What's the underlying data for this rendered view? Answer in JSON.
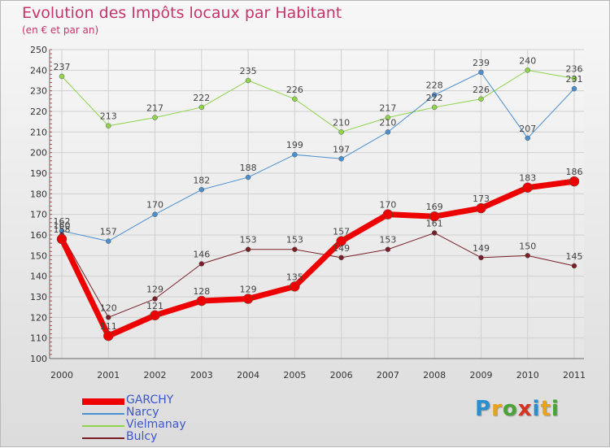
{
  "header": {
    "title": "Evolution des Impôts locaux par Habitant",
    "subtitle": "(en € et par an)"
  },
  "chart_data": {
    "type": "line",
    "title": "Evolution des Impôts locaux par Habitant",
    "subtitle": "(en € et par an)",
    "xlabel": "",
    "ylabel": "",
    "ylim": [
      100,
      250
    ],
    "y_ticks": [
      100,
      110,
      120,
      130,
      140,
      150,
      160,
      170,
      180,
      190,
      200,
      210,
      220,
      230,
      240,
      250
    ],
    "grid": true,
    "legend_position": "bottom-left",
    "categories": [
      "2000",
      "2001",
      "2002",
      "2003",
      "2004",
      "2005",
      "2006",
      "2007",
      "2008",
      "2009",
      "2010",
      "2011"
    ],
    "series": [
      {
        "name": "Vielmanay",
        "color": "#8fd44b",
        "values": [
          237,
          213,
          217,
          222,
          235,
          226,
          210,
          217,
          222,
          226,
          240,
          236
        ]
      },
      {
        "name": "Narcy",
        "color": "#4a8fcf",
        "values": [
          162,
          157,
          170,
          182,
          188,
          199,
          197,
          210,
          228,
          239,
          207,
          231
        ]
      },
      {
        "name": "Bulcy",
        "color": "#7a1f28",
        "values": [
          160,
          120,
          129,
          146,
          153,
          153,
          149,
          153,
          161,
          149,
          150,
          145
        ]
      },
      {
        "name": "GARCHY",
        "color": "#ee0000",
        "values": [
          158,
          111,
          121,
          128,
          129,
          135,
          157,
          170,
          169,
          173,
          183,
          186
        ]
      }
    ]
  },
  "legend": {
    "items": [
      {
        "label": "GARCHY",
        "color": "#ee0000"
      },
      {
        "label": "Narcy",
        "color": "#4a8fcf"
      },
      {
        "label": "Vielmanay",
        "color": "#8fd44b"
      },
      {
        "label": "Bulcy",
        "color": "#7a1f28"
      }
    ]
  },
  "logo": {
    "letters": [
      "P",
      "r",
      "o",
      "x",
      "i",
      "t",
      "i"
    ],
    "colors": [
      "#2a8fd0",
      "#e8a21c",
      "#4aa336",
      "#d7311f",
      "#2a8fd0",
      "#e8a21c",
      "#4aa336"
    ]
  }
}
